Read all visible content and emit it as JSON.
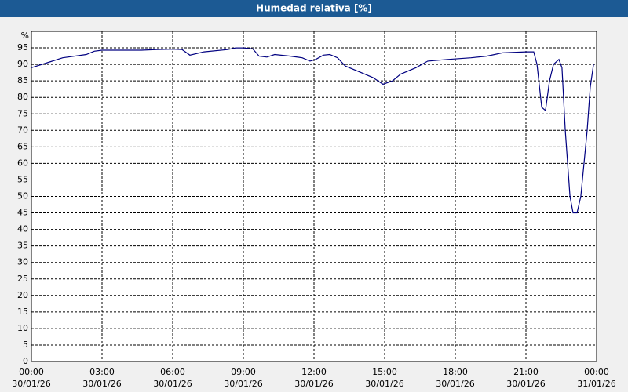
{
  "chart_data": {
    "type": "line",
    "title": "Humedad relativa [%]",
    "ylabel": "%",
    "xlim": [
      0,
      24
    ],
    "xticks": [
      {
        "value": 0,
        "label": "00:00"
      },
      {
        "value": 3,
        "label": "03:00"
      },
      {
        "value": 6,
        "label": "06:00"
      },
      {
        "value": 9,
        "label": "09:00"
      },
      {
        "value": 12,
        "label": "12:00"
      },
      {
        "value": 15,
        "label": "15:00"
      },
      {
        "value": 18,
        "label": "18:00"
      },
      {
        "value": 21,
        "label": "21:00"
      },
      {
        "value": 24,
        "label": "00:00"
      }
    ],
    "xtick_dates": [
      "30/01/26",
      "30/01/26",
      "30/01/26",
      "30/01/26",
      "30/01/26",
      "30/01/26",
      "30/01/26",
      "30/01/26",
      "31/01/26"
    ],
    "ylim": [
      0,
      100
    ],
    "yticks": [
      0,
      5,
      10,
      15,
      20,
      25,
      30,
      35,
      40,
      45,
      50,
      55,
      60,
      65,
      70,
      75,
      80,
      85,
      90,
      95
    ],
    "grid": true,
    "x": [
      0,
      0.67,
      1.33,
      2.33,
      2.67,
      3,
      4.67,
      5.33,
      6,
      6.4,
      6.73,
      7.33,
      8.33,
      8.67,
      9,
      9.4,
      9.67,
      10,
      10.33,
      11,
      11.5,
      11.83,
      12.07,
      12.4,
      12.67,
      13,
      13.33,
      14,
      14.5,
      14.93,
      15.33,
      15.67,
      16.33,
      16.83,
      17.67,
      18.67,
      19.33,
      20,
      21,
      21.33,
      21.47,
      21.67,
      21.83,
      22,
      22.17,
      22.4,
      22.53,
      22.67,
      22.87,
      23,
      23.17,
      23.33,
      23.6,
      23.73,
      23.87
    ],
    "series": [
      {
        "name": "Humedad relativa",
        "color": "#000080",
        "values": [
          89,
          90.5,
          92,
          93,
          94,
          94.3,
          94.3,
          94.5,
          94.6,
          94.5,
          92.8,
          93.8,
          94.5,
          95,
          95,
          94.7,
          92.5,
          92.2,
          93,
          92.5,
          92,
          91,
          91.5,
          92.8,
          93,
          92,
          89.5,
          87.5,
          86,
          84,
          85,
          87,
          89,
          91,
          91.5,
          92,
          92.5,
          93.5,
          93.8,
          93.8,
          90,
          77,
          76,
          85,
          90,
          91.5,
          89,
          70,
          50,
          45,
          45,
          50,
          70,
          83,
          90
        ]
      }
    ]
  }
}
